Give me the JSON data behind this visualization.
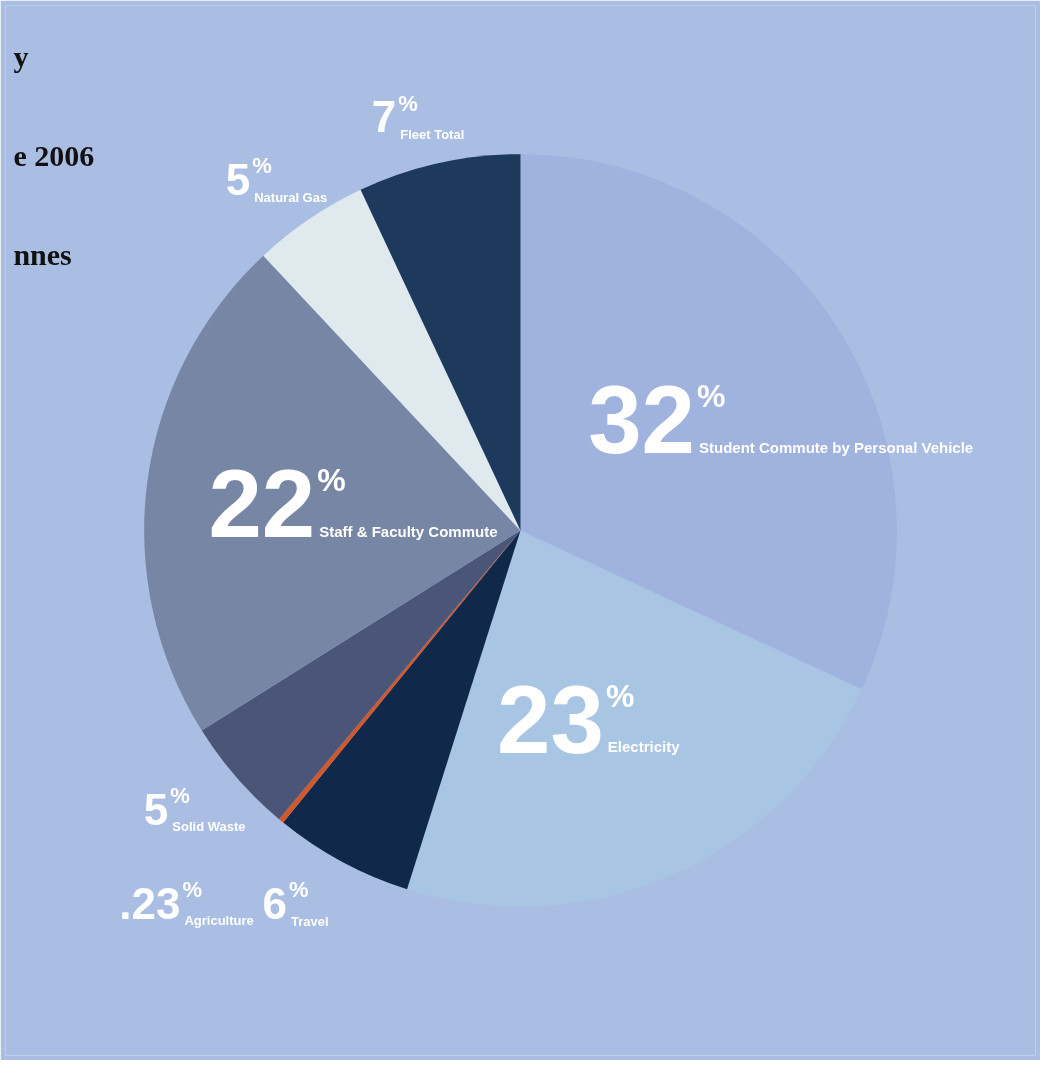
{
  "chart_data": {
    "type": "pie",
    "categories": [
      "Student Commute by Personal Vehicle",
      "Electricity",
      "Travel",
      "Agriculture",
      "Solid Waste",
      "Staff & Faculty Commute",
      "Natural Gas",
      "Fleet Total"
    ],
    "values": [
      32,
      23,
      6,
      0.23,
      5,
      22,
      5,
      7
    ],
    "value_labels": [
      "32%",
      "23%",
      "6%",
      ".23%",
      "5%",
      "22%",
      "5%",
      "7%"
    ],
    "colors": [
      "#9fb3de",
      "#a8c6e4",
      "#10294a",
      "#d2572a",
      "#4a5578",
      "#7886a6",
      "#dfe9ee",
      "#1d3a5c"
    ],
    "annotations": [
      "y",
      "e 2006",
      "nnes"
    ]
  }
}
